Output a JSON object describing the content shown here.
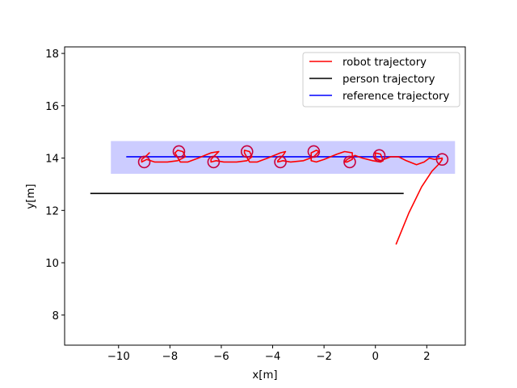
{
  "chart_data": {
    "type": "line",
    "xlabel": "x[m]",
    "ylabel": "y[m]",
    "xlim": [
      -12.1,
      3.5
    ],
    "ylim": [
      6.85,
      18.25
    ],
    "xticks": [
      -10,
      -8,
      -6,
      -4,
      -2,
      0,
      2
    ],
    "xtick_labels": [
      "−10",
      "−8",
      "−6",
      "−4",
      "−2",
      "0",
      "2"
    ],
    "yticks": [
      8,
      10,
      12,
      14,
      16,
      18
    ],
    "ytick_labels": [
      "8",
      "10",
      "12",
      "14",
      "16",
      "18"
    ],
    "grid": false,
    "legend_position": "upper right",
    "band": {
      "x": [
        -10.3,
        3.1
      ],
      "y": [
        13.4,
        14.65
      ],
      "color": "#ccccff"
    },
    "series": [
      {
        "name": "robot trajectory",
        "color": "#ff0000",
        "x": [
          0.8,
          1.3,
          1.8,
          2.2,
          2.5,
          2.6,
          2.6,
          2.3,
          2.1,
          1.9,
          1.6,
          1.2,
          0.9,
          0.6,
          0.2,
          0.0,
          0.0,
          0.2,
          0.3,
          0.2,
          -0.1,
          -0.5,
          -0.8,
          -1.1,
          -1.2,
          -1.1,
          -0.9,
          -0.9,
          -1.2,
          -1.5,
          -2.0,
          -2.3,
          -2.5,
          -2.5,
          -2.3,
          -2.2,
          -2.4,
          -2.8,
          -3.3,
          -3.6,
          -3.8,
          -3.8,
          -3.6,
          -3.5,
          -3.7,
          -4.2,
          -4.6,
          -4.9,
          -5.1,
          -5.1,
          -4.9,
          -4.8,
          -5.0,
          -5.4,
          -5.9,
          -6.2,
          -6.4,
          -6.4,
          -6.2,
          -6.1,
          -6.4,
          -6.9,
          -7.3,
          -7.6,
          -7.8,
          -7.7,
          -7.5,
          -7.4,
          -7.7,
          -8.1,
          -8.6,
          -8.9,
          -9.1,
          -9.1,
          -8.9,
          -8.8,
          -8.9
        ],
        "y": [
          10.7,
          11.9,
          12.9,
          13.5,
          13.8,
          13.95,
          14.0,
          13.95,
          14.0,
          13.85,
          13.75,
          13.9,
          14.05,
          14.05,
          13.9,
          14.0,
          14.2,
          14.15,
          13.9,
          13.85,
          13.9,
          14.0,
          14.1,
          13.95,
          13.85,
          13.85,
          13.95,
          14.2,
          14.25,
          14.15,
          13.95,
          13.85,
          13.9,
          14.2,
          14.3,
          14.25,
          14.05,
          13.9,
          13.85,
          13.9,
          13.85,
          13.9,
          14.1,
          14.25,
          14.2,
          14.0,
          13.85,
          13.85,
          14.2,
          14.3,
          14.25,
          14.05,
          13.9,
          13.85,
          13.85,
          13.9,
          13.85,
          13.95,
          14.15,
          14.25,
          14.2,
          14.0,
          13.85,
          13.85,
          14.2,
          14.3,
          14.25,
          14.05,
          13.9,
          13.85,
          13.85,
          13.95,
          13.85,
          13.95,
          14.1,
          14.2,
          14.1
        ]
      },
      {
        "name": "person trajectory",
        "color": "#000000",
        "x": [
          -11.1,
          1.1
        ],
        "y": [
          12.65,
          12.65
        ]
      },
      {
        "name": "reference trajectory",
        "color": "#0000ff",
        "x": [
          -9.7,
          2.5
        ],
        "y": [
          14.05,
          14.05
        ]
      }
    ],
    "loops": [
      {
        "cx": 2.6,
        "cy": 13.95,
        "r": 0.22
      },
      {
        "cx": 0.15,
        "cy": 14.1,
        "r": 0.22
      },
      {
        "cx": -1.0,
        "cy": 13.85,
        "r": 0.22
      },
      {
        "cx": -2.4,
        "cy": 14.25,
        "r": 0.22
      },
      {
        "cx": -3.7,
        "cy": 13.85,
        "r": 0.22
      },
      {
        "cx": -5.0,
        "cy": 14.25,
        "r": 0.22
      },
      {
        "cx": -6.3,
        "cy": 13.85,
        "r": 0.22
      },
      {
        "cx": -7.65,
        "cy": 14.25,
        "r": 0.22
      },
      {
        "cx": -9.0,
        "cy": 13.85,
        "r": 0.22
      }
    ]
  }
}
